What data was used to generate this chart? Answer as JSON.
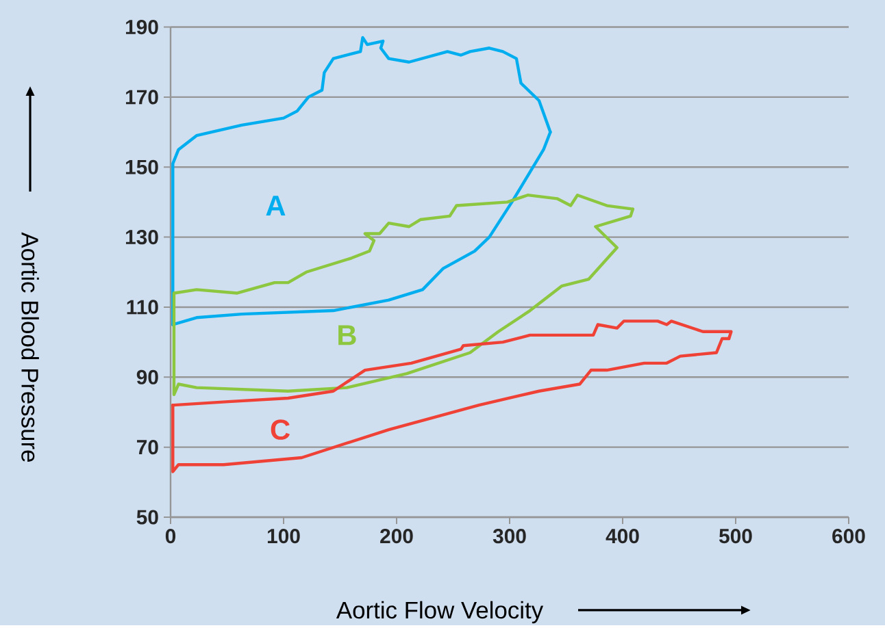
{
  "chart_data": {
    "type": "line",
    "xlabel": "Aortic Flow Velocity",
    "ylabel": "Aortic Blood Pressure",
    "xlim": [
      0,
      600
    ],
    "xticks": [
      0,
      100,
      200,
      300,
      400,
      500,
      600
    ],
    "ylim": [
      50,
      190
    ],
    "yticks": [
      50,
      70,
      90,
      110,
      130,
      150,
      170,
      190
    ],
    "grid": "y",
    "marker": "none",
    "line_style": "solid",
    "series": [
      {
        "name": "A",
        "color": "#00aeef",
        "x": [
          2,
          2,
          7,
          23,
          63,
          100,
          112,
          122,
          134,
          136,
          144,
          168,
          170,
          174,
          188,
          186,
          193,
          211,
          245,
          257,
          265,
          282,
          294,
          306,
          310,
          326,
          336
        ],
        "values": [
          105,
          151,
          155,
          159,
          162,
          164,
          166,
          170,
          172,
          177,
          181,
          183,
          187,
          185,
          186,
          184,
          181,
          180,
          183,
          182,
          183,
          184,
          183,
          181,
          174,
          169,
          160
        ]
      },
      {
        "color": "#00aeef",
        "x": [
          2,
          23,
          63,
          144,
          193,
          223,
          241,
          269,
          282,
          302,
          330,
          336
        ],
        "values": [
          105,
          107,
          108,
          109,
          112,
          115,
          121,
          126,
          130,
          140,
          155,
          160
        ]
      },
      {
        "name": "B",
        "color": "#8dc63f",
        "x": [
          3,
          23,
          59,
          92,
          104,
          120,
          160,
          176,
          180,
          172,
          185,
          193,
          211,
          221,
          247,
          253,
          298,
          316,
          342,
          354,
          360,
          386,
          409
        ],
        "values": [
          114,
          115,
          114,
          117,
          117,
          120,
          124,
          126,
          129,
          131,
          131,
          134,
          133,
          135,
          136,
          139,
          140,
          142,
          141,
          139,
          142,
          139,
          138
        ]
      },
      {
        "color": "#8dc63f",
        "x": [
          3,
          3,
          7,
          23,
          104,
          156,
          209,
          265,
          290,
          318,
          346,
          370,
          395,
          376,
          407,
          409
        ],
        "values": [
          114,
          85,
          88,
          87,
          86,
          87,
          91,
          97,
          103,
          109,
          116,
          118,
          127,
          133,
          136,
          138
        ]
      },
      {
        "name": "C",
        "color": "#ef4136",
        "x": [
          2,
          51,
          104,
          144,
          172,
          193,
          213,
          257,
          259,
          294,
          318,
          374,
          378,
          395,
          401,
          431,
          439,
          443,
          471,
          496,
          494
        ],
        "values": [
          82,
          83,
          84,
          86,
          92,
          93,
          94,
          98,
          99,
          100,
          102,
          102,
          105,
          104,
          106,
          106,
          105,
          106,
          103,
          103,
          101
        ]
      },
      {
        "color": "#ef4136",
        "x": [
          2,
          2,
          7,
          47,
          116,
          193,
          273,
          326,
          362,
          372,
          386,
          419,
          439,
          451,
          483,
          488,
          494
        ],
        "values": [
          82,
          63,
          65,
          65,
          67,
          75,
          82,
          86,
          88,
          92,
          92,
          94,
          94,
          96,
          97,
          101,
          101
        ]
      }
    ]
  }
}
